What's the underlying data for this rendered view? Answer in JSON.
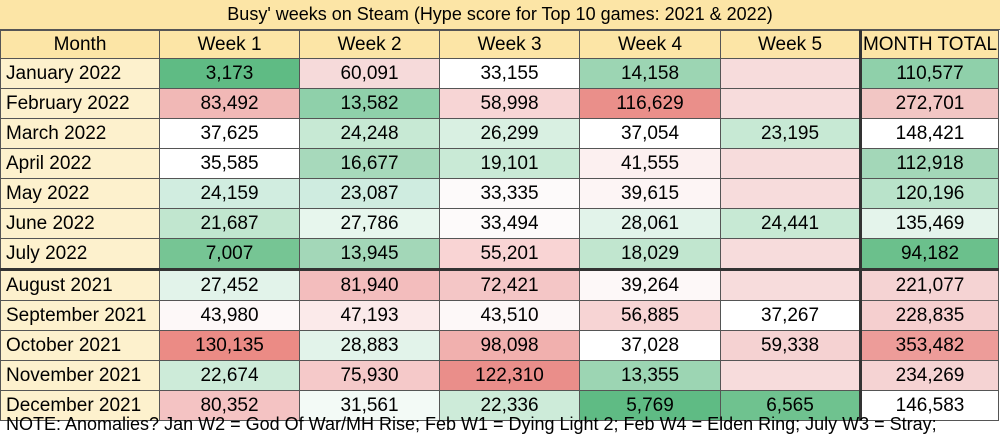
{
  "title": "Busy' weeks on Steam (Hype score for Top 10 games: 2021 & 2022)",
  "note": "NOTE: Anomalies?  Jan W2 = God Of War/MH Rise; Feb W1 = Dying Light 2; Feb W4 = Elden Ring; July W3 = Stray;",
  "chart_data": {
    "type": "table",
    "title": "Busy' weeks on Steam (Hype score for Top 10 games: 2021 & 2022)",
    "columns": [
      "Month",
      "Week 1",
      "Week 2",
      "Week 3",
      "Week 4",
      "Week 5",
      "MONTH TOTAL"
    ],
    "rows": [
      {
        "month": "January 2022",
        "cells": [
          "3,173",
          "60,091",
          "33,155",
          "14,158",
          "",
          "110,577"
        ]
      },
      {
        "month": "February 2022",
        "cells": [
          "83,492",
          "13,582",
          "58,998",
          "116,629",
          "",
          "272,701"
        ]
      },
      {
        "month": "March 2022",
        "cells": [
          "37,625",
          "24,248",
          "26,299",
          "37,054",
          "23,195",
          "148,421"
        ]
      },
      {
        "month": "April 2022",
        "cells": [
          "35,585",
          "16,677",
          "19,101",
          "41,555",
          "",
          "112,918"
        ]
      },
      {
        "month": "May 2022",
        "cells": [
          "24,159",
          "23,087",
          "33,335",
          "39,615",
          "",
          "120,196"
        ]
      },
      {
        "month": "June 2022",
        "cells": [
          "21,687",
          "27,786",
          "33,494",
          "28,061",
          "24,441",
          "135,469"
        ]
      },
      {
        "month": "July 2022",
        "cells": [
          "7,007",
          "13,945",
          "55,201",
          "18,029",
          "",
          "94,182"
        ]
      },
      {
        "month": "August 2021",
        "cells": [
          "27,452",
          "81,940",
          "72,421",
          "39,264",
          "",
          "221,077"
        ]
      },
      {
        "month": "September 2021",
        "cells": [
          "43,980",
          "47,193",
          "43,510",
          "56,885",
          "37,267",
          "228,835"
        ]
      },
      {
        "month": "October 2021",
        "cells": [
          "130,135",
          "28,883",
          "98,098",
          "37,028",
          "59,338",
          "353,482"
        ]
      },
      {
        "month": "November 2021",
        "cells": [
          "22,674",
          "75,930",
          "122,310",
          "13,355",
          "",
          "234,269"
        ]
      },
      {
        "month": "December 2021",
        "cells": [
          "80,352",
          "31,561",
          "22,336",
          "5,769",
          "6,565",
          "146,583"
        ]
      }
    ],
    "cell_colors": [
      [
        "#5fbb84",
        "#f6dada",
        "#ffffff",
        "#9cd5b3",
        "#f7dcdc",
        "#8fd0aa"
      ],
      [
        "#f1b8b6",
        "#8fd0aa",
        "#f7d5d5",
        "#ea8f8a",
        "#f7dcdc",
        "#f2c6c4"
      ],
      [
        "#ffffff",
        "#c7e9d4",
        "#d9f0e2",
        "#ffffff",
        "#c7e9d4",
        "#ffffff"
      ],
      [
        "#ffffff",
        "#a7d9bb",
        "#c9ead6",
        "#fcf0f0",
        "#f7dcdc",
        "#a3d7b8"
      ],
      [
        "#d1ede0",
        "#cfece0",
        "#fdfafa",
        "#fdf5f5",
        "#f7dcdc",
        "#b9e3ca"
      ],
      [
        "#c1e6cf",
        "#e7f6ed",
        "#fdfafa",
        "#e2f3ea",
        "#c7e9d4",
        "#e4f4eb"
      ],
      [
        "#76c594",
        "#a3d7b8",
        "#f9d4d4",
        "#c1e6cf",
        "#f7dcdc",
        "#6bc08c"
      ],
      [
        "#e2f3ea",
        "#f3bdbd",
        "#f4c6c6",
        "#fdf8f8",
        "#f7dcdc",
        "#f5d3d3"
      ],
      [
        "#fdf8f8",
        "#fbeaea",
        "#fdf8f8",
        "#f7d4d4",
        "#ffffff",
        "#f5cfcf"
      ],
      [
        "#eb8b85",
        "#e2f3ea",
        "#f1b0ae",
        "#ffffff",
        "#f5d2d2",
        "#ed9c99"
      ],
      [
        "#cdebd9",
        "#f5c9c9",
        "#ea8e8a",
        "#9cd5b3",
        "#f7dcdc",
        "#f5d3d3"
      ],
      [
        "#f4c3c3",
        "#f3faf6",
        "#cdebd9",
        "#5fbb84",
        "#6fc28f",
        "#ffffff"
      ]
    ]
  }
}
